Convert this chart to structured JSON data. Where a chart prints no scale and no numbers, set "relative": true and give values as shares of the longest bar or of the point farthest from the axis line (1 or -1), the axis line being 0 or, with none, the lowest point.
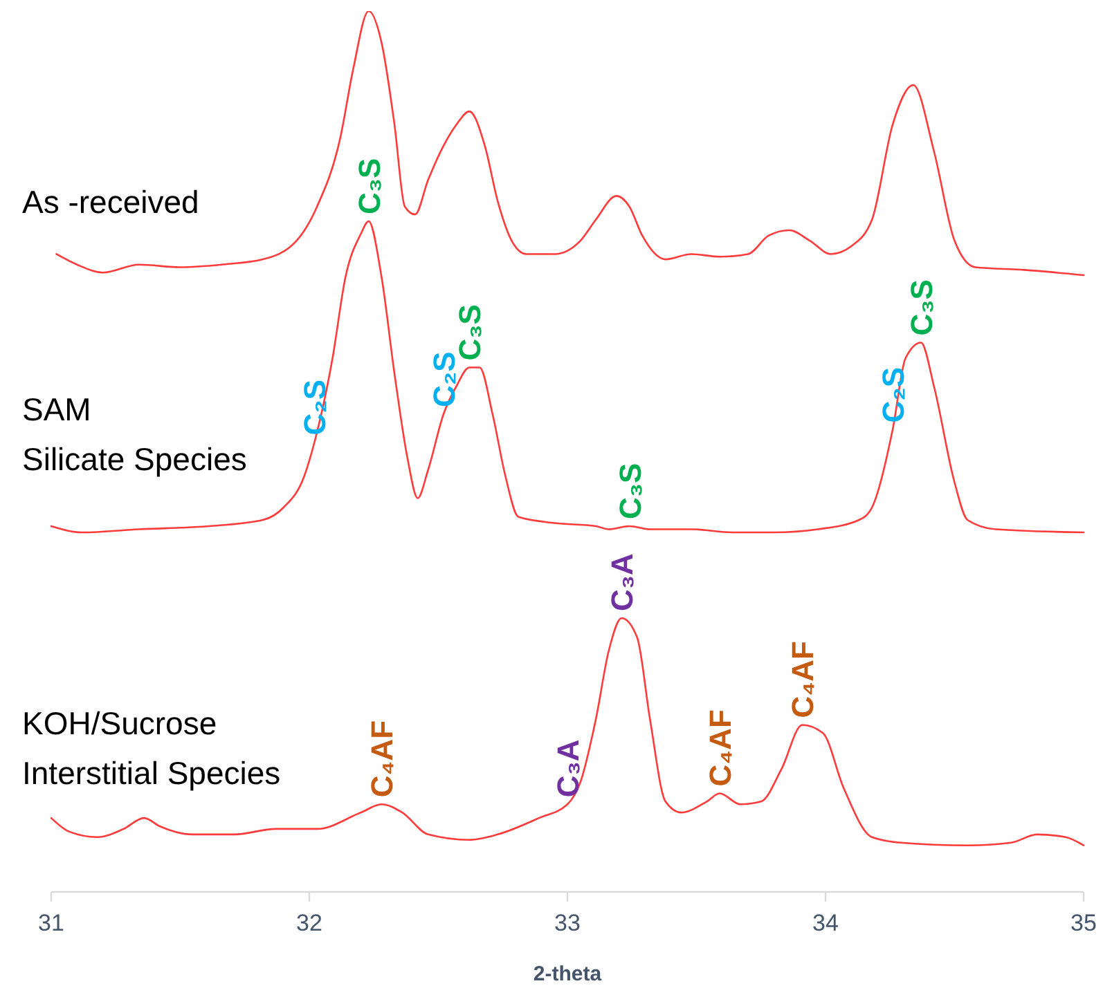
{
  "chart_data": [
    {
      "type": "line",
      "relative": true,
      "xlim": [
        31,
        35
      ],
      "tick_labels": false,
      "x": [
        31.02,
        31.1,
        31.2,
        31.34,
        31.5,
        31.66,
        31.82,
        31.95,
        32.03,
        32.12,
        32.17,
        32.23,
        32.28,
        32.33,
        32.37,
        32.41,
        32.46,
        32.52,
        32.57,
        32.62,
        32.68,
        32.73,
        32.79,
        32.84,
        32.95,
        33.05,
        33.11,
        33.19,
        33.24,
        33.29,
        33.38,
        33.48,
        33.59,
        33.7,
        33.78,
        33.86,
        33.94,
        34.02,
        34.1,
        34.18,
        34.26,
        34.34,
        34.42,
        34.5,
        34.58,
        34.77,
        35.0
      ],
      "series": [
        {
          "name": "As -received",
          "color": "#ff3b3b",
          "values": [
            0.08,
            0.04,
            0.01,
            0.04,
            0.03,
            0.04,
            0.06,
            0.13,
            0.26,
            0.52,
            0.78,
            1,
            0.88,
            0.57,
            0.26,
            0.23,
            0.36,
            0.49,
            0.57,
            0.62,
            0.49,
            0.28,
            0.12,
            0.08,
            0.08,
            0.13,
            0.21,
            0.3,
            0.26,
            0.15,
            0.06,
            0.08,
            0.07,
            0.08,
            0.15,
            0.17,
            0.13,
            0.08,
            0.11,
            0.21,
            0.57,
            0.72,
            0.47,
            0.13,
            0.03,
            0.02,
            0
          ]
        }
      ]
    },
    {
      "type": "line",
      "relative": true,
      "xlim": [
        31,
        35
      ],
      "tick_labels": false,
      "x": [
        31.0,
        31.12,
        31.34,
        31.61,
        31.82,
        31.9,
        31.98,
        32.02,
        32.09,
        32.14,
        32.2,
        32.23,
        32.28,
        32.33,
        32.38,
        32.42,
        32.46,
        32.52,
        32.57,
        32.62,
        32.66,
        32.71,
        32.76,
        32.81,
        32.95,
        33.11,
        33.16,
        33.24,
        33.32,
        33.4,
        33.48,
        33.64,
        33.8,
        33.97,
        34.13,
        34.18,
        34.26,
        34.31,
        34.37,
        34.42,
        34.5,
        34.55,
        34.66,
        35.0
      ],
      "series": [
        {
          "name": "SAM\nSilicate Species",
          "color": "#ff3b3b",
          "values": [
            0.02,
            0,
            0.01,
            0.02,
            0.04,
            0.08,
            0.18,
            0.29,
            0.56,
            0.82,
            0.96,
            1,
            0.82,
            0.51,
            0.24,
            0.11,
            0.2,
            0.38,
            0.47,
            0.53,
            0.53,
            0.38,
            0.18,
            0.05,
            0.03,
            0.02,
            0.01,
            0.02,
            0.01,
            0.01,
            0.01,
            0,
            0,
            0.01,
            0.04,
            0.08,
            0.33,
            0.56,
            0.61,
            0.47,
            0.16,
            0.04,
            0.01,
            0
          ]
        }
      ],
      "annotations": [
        {
          "text": "C₃S",
          "x": 32.23,
          "y": 1
        },
        {
          "text": "C₂S",
          "x": 32.02,
          "y": 0.29
        },
        {
          "text": "C₂S",
          "x": 32.52,
          "y": 0.38
        },
        {
          "text": "C₃S",
          "x": 32.62,
          "y": 0.53
        },
        {
          "text": "C₃S",
          "x": 33.24,
          "y": 0.02
        },
        {
          "text": "C₂S",
          "x": 34.26,
          "y": 0.33
        },
        {
          "text": "C₃S",
          "x": 34.37,
          "y": 0.61
        }
      ]
    },
    {
      "type": "line",
      "relative": true,
      "xlim": [
        31,
        35
      ],
      "xticks": [
        31,
        32,
        33,
        34,
        35
      ],
      "tick_labels": "x",
      "xlabel": "2-theta",
      "x": [
        31.0,
        31.07,
        31.18,
        31.28,
        31.36,
        31.42,
        31.55,
        31.71,
        31.87,
        32.03,
        32.2,
        32.28,
        32.36,
        32.46,
        32.62,
        32.73,
        32.89,
        33.0,
        33.05,
        33.11,
        33.16,
        33.21,
        33.27,
        33.32,
        33.38,
        33.44,
        33.54,
        33.59,
        33.67,
        33.75,
        33.83,
        33.91,
        33.99,
        34.07,
        34.18,
        34.29,
        34.55,
        34.72,
        34.82,
        34.93,
        35.0
      ],
      "series": [
        {
          "name": "KOH/Sucrose\nInterstitial Species",
          "color": "#ff3b3b",
          "values": [
            0.27,
            0.22,
            0.2,
            0.23,
            0.27,
            0.24,
            0.21,
            0.21,
            0.23,
            0.23,
            0.29,
            0.32,
            0.29,
            0.21,
            0.19,
            0.21,
            0.27,
            0.32,
            0.4,
            0.63,
            0.88,
            1,
            0.93,
            0.63,
            0.33,
            0.29,
            0.33,
            0.36,
            0.32,
            0.33,
            0.45,
            0.61,
            0.58,
            0.38,
            0.2,
            0.18,
            0.17,
            0.18,
            0.21,
            0.2,
            0.17
          ]
        }
      ],
      "annotations": [
        {
          "text": "C₄AF",
          "x": 32.28,
          "y": 0.32
        },
        {
          "text": "C₃A",
          "x": 33.0,
          "y": 0.32
        },
        {
          "text": "C₃A",
          "x": 33.21,
          "y": 1
        },
        {
          "text": "C₄AF",
          "x": 33.59,
          "y": 0.36
        },
        {
          "text": "C₄AF",
          "x": 33.91,
          "y": 0.61
        }
      ]
    }
  ]
}
